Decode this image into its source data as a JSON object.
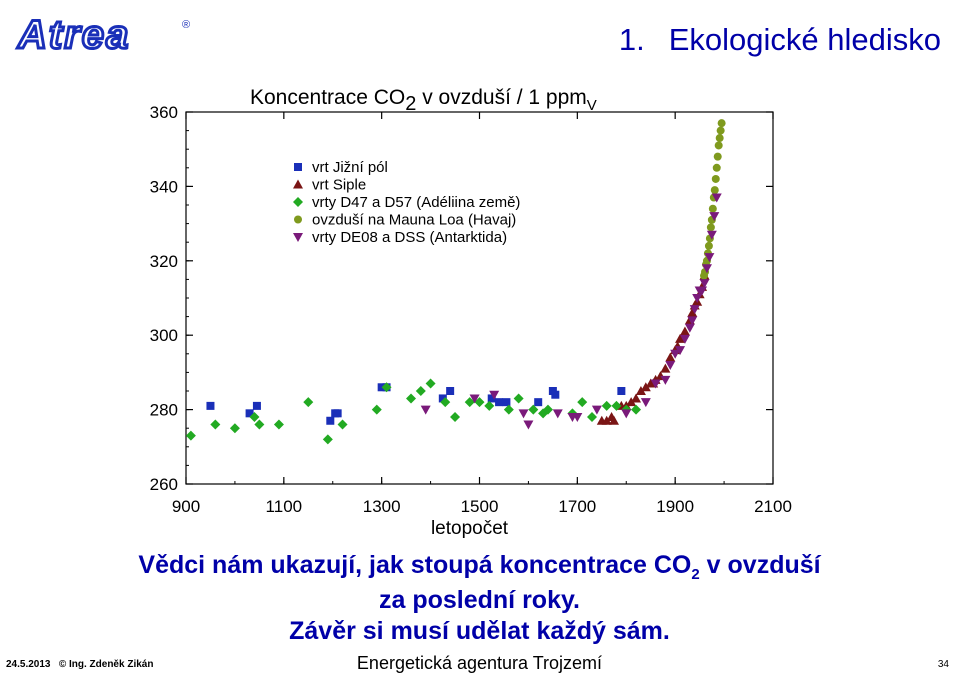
{
  "header": {
    "logo_text": "Atrea",
    "title_number": "1.",
    "title_text": "Ekologické hledisko"
  },
  "caption": {
    "line1_before": "Vědci nám ukazují, jak stoupá koncentrace CO",
    "line1_sub": "2",
    "line1_after": " v ovzduší",
    "line2": "za poslední roky.",
    "line3": "Závěr si musí udělat každý sám."
  },
  "footer": {
    "date": "24.5.2013",
    "author": "© Ing. Zdeněk Zikán",
    "center": "Energetická agentura Trojzemí",
    "page": "34"
  },
  "colors": {
    "title_blue": "#0000a8",
    "south_pole": "#1a2fb8",
    "siple": "#7a1515",
    "d47_d57": "#22aa22",
    "mauna_loa": "#7f9a1e",
    "de08": "#7a1a7a"
  },
  "chart_data": {
    "type": "scatter",
    "title": "Koncentrace CO2 v ovzduší / 1 ppmV",
    "title_parts": {
      "main": "Koncentrace CO",
      "sub": "2",
      "rest": " v ovzduší / 1 ppm",
      "unit_sub": "V"
    },
    "xlabel": "letopočet",
    "ylabel": "",
    "xlim": [
      900,
      2100
    ],
    "ylim": [
      260,
      360
    ],
    "xticks": [
      900,
      1100,
      1300,
      1500,
      1700,
      1900,
      2100
    ],
    "yticks": [
      260,
      280,
      300,
      320,
      340,
      360
    ],
    "grid": false,
    "legend_position": "top-left",
    "series": [
      {
        "name": "vrt Jižní pól",
        "marker": "square",
        "color": "#1a2fb8",
        "points": [
          [
            950,
            281
          ],
          [
            1030,
            279
          ],
          [
            1045,
            281
          ],
          [
            1195,
            277
          ],
          [
            1205,
            279
          ],
          [
            1210,
            279
          ],
          [
            1300,
            286
          ],
          [
            1310,
            286
          ],
          [
            1425,
            283
          ],
          [
            1440,
            285
          ],
          [
            1525,
            283
          ],
          [
            1540,
            282
          ],
          [
            1555,
            282
          ],
          [
            1620,
            282
          ],
          [
            1650,
            285
          ],
          [
            1655,
            284
          ],
          [
            1790,
            285
          ]
        ]
      },
      {
        "name": "vrt Siple",
        "marker": "triangle-up",
        "color": "#7a1515",
        "points": [
          [
            1750,
            277
          ],
          [
            1760,
            277
          ],
          [
            1770,
            278
          ],
          [
            1775,
            277
          ],
          [
            1790,
            281
          ],
          [
            1800,
            281
          ],
          [
            1810,
            282
          ],
          [
            1820,
            283
          ],
          [
            1830,
            285
          ],
          [
            1840,
            286
          ],
          [
            1850,
            287
          ],
          [
            1855,
            287
          ],
          [
            1860,
            288
          ],
          [
            1870,
            289
          ],
          [
            1880,
            291
          ],
          [
            1890,
            294
          ],
          [
            1900,
            296
          ],
          [
            1905,
            297
          ],
          [
            1910,
            299
          ],
          [
            1920,
            301
          ],
          [
            1930,
            304
          ],
          [
            1935,
            306
          ],
          [
            1940,
            308
          ],
          [
            1945,
            309
          ],
          [
            1950,
            311
          ],
          [
            1955,
            313
          ],
          [
            1960,
            316
          ]
        ]
      },
      {
        "name": "vrty D47 a D57 (Adéliina země)",
        "marker": "diamond",
        "color": "#22aa22",
        "points": [
          [
            910,
            273
          ],
          [
            960,
            276
          ],
          [
            1000,
            275
          ],
          [
            1040,
            278
          ],
          [
            1050,
            276
          ],
          [
            1090,
            276
          ],
          [
            1150,
            282
          ],
          [
            1190,
            272
          ],
          [
            1220,
            276
          ],
          [
            1290,
            280
          ],
          [
            1310,
            286
          ],
          [
            1360,
            283
          ],
          [
            1380,
            285
          ],
          [
            1400,
            287
          ],
          [
            1430,
            282
          ],
          [
            1450,
            278
          ],
          [
            1480,
            282
          ],
          [
            1500,
            282
          ],
          [
            1520,
            281
          ],
          [
            1560,
            280
          ],
          [
            1580,
            283
          ],
          [
            1610,
            280
          ],
          [
            1630,
            279
          ],
          [
            1640,
            280
          ],
          [
            1690,
            279
          ],
          [
            1710,
            282
          ],
          [
            1730,
            278
          ],
          [
            1760,
            281
          ],
          [
            1780,
            281
          ],
          [
            1800,
            280
          ],
          [
            1820,
            280
          ]
        ]
      },
      {
        "name": "ovzduší na Mauna Loa (Havaj)",
        "marker": "circle",
        "color": "#7f9a1e",
        "points": [
          [
            1959,
            316
          ],
          [
            1961,
            317
          ],
          [
            1963,
            319
          ],
          [
            1965,
            320
          ],
          [
            1967,
            322
          ],
          [
            1969,
            324
          ],
          [
            1971,
            326
          ],
          [
            1973,
            329
          ],
          [
            1975,
            331
          ],
          [
            1977,
            334
          ],
          [
            1979,
            337
          ],
          [
            1981,
            339
          ],
          [
            1983,
            342
          ],
          [
            1985,
            345
          ],
          [
            1987,
            348
          ],
          [
            1989,
            351
          ],
          [
            1991,
            353
          ],
          [
            1993,
            355
          ],
          [
            1995,
            357
          ]
        ]
      },
      {
        "name": "vrty DE08 a DSS (Antarktida)",
        "marker": "triangle-down",
        "color": "#7a1a7a",
        "points": [
          [
            1390,
            280
          ],
          [
            1490,
            283
          ],
          [
            1530,
            284
          ],
          [
            1590,
            279
          ],
          [
            1600,
            276
          ],
          [
            1660,
            279
          ],
          [
            1690,
            278
          ],
          [
            1700,
            278
          ],
          [
            1740,
            280
          ],
          [
            1800,
            279
          ],
          [
            1840,
            282
          ],
          [
            1860,
            287
          ],
          [
            1880,
            288
          ],
          [
            1890,
            292
          ],
          [
            1900,
            295
          ],
          [
            1910,
            296
          ],
          [
            1920,
            299
          ],
          [
            1930,
            302
          ],
          [
            1935,
            304
          ],
          [
            1940,
            307
          ],
          [
            1945,
            310
          ],
          [
            1950,
            312
          ],
          [
            1955,
            312
          ],
          [
            1960,
            314
          ],
          [
            1965,
            318
          ],
          [
            1970,
            321
          ],
          [
            1975,
            327
          ],
          [
            1980,
            332
          ],
          [
            1985,
            337
          ]
        ]
      }
    ]
  }
}
